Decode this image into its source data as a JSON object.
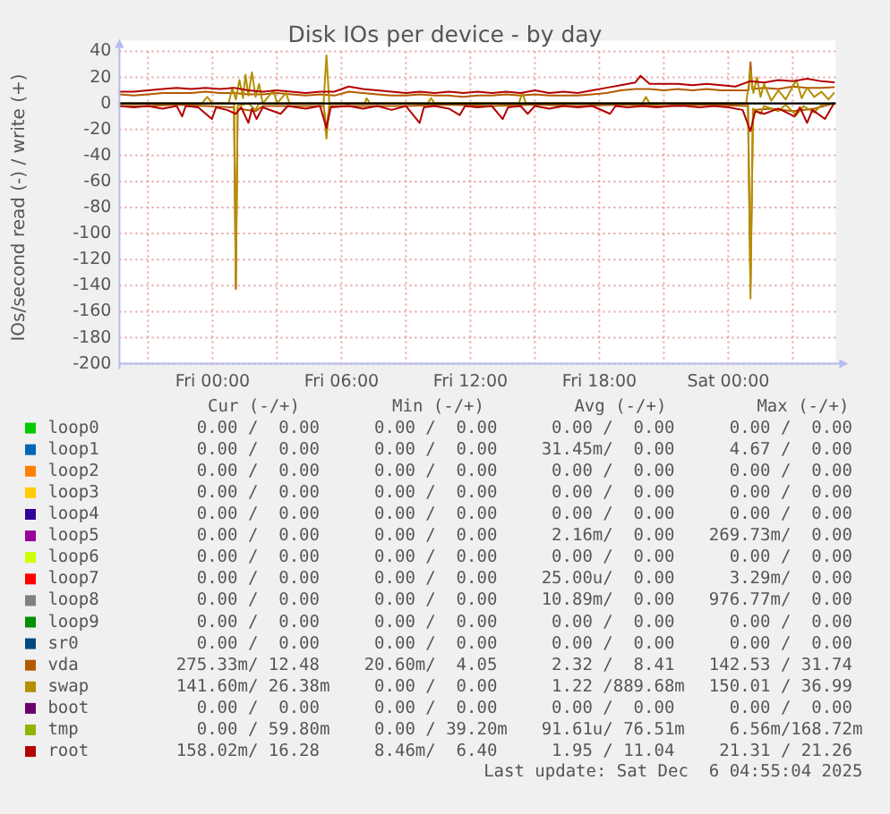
{
  "chart_data": {
    "type": "line",
    "title": "Disk IOs per device - by day",
    "ylabel": "IOs/second read (-) / write (+)",
    "xlim": [
      "2025-12-04T19:40",
      "2025-12-06T05:00"
    ],
    "xticks": [
      {
        "value": "2025-12-04T21:00",
        "label": null
      },
      {
        "value": "2025-12-05T00:00",
        "label": "Fri 00:00"
      },
      {
        "value": "2025-12-05T03:00",
        "label": null
      },
      {
        "value": "2025-12-05T06:00",
        "label": "Fri 06:00"
      },
      {
        "value": "2025-12-05T09:00",
        "label": null
      },
      {
        "value": "2025-12-05T12:00",
        "label": "Fri 12:00"
      },
      {
        "value": "2025-12-05T15:00",
        "label": null
      },
      {
        "value": "2025-12-05T18:00",
        "label": "Fri 18:00"
      },
      {
        "value": "2025-12-05T21:00",
        "label": null
      },
      {
        "value": "2025-12-06T00:00",
        "label": "Sat 00:00"
      },
      {
        "value": "2025-12-06T03:00",
        "label": null
      }
    ],
    "ylim": [
      -200,
      40
    ],
    "yticks": [
      -200,
      -180,
      -160,
      -140,
      -120,
      -100,
      -80,
      -60,
      -40,
      -20,
      0,
      20,
      40
    ],
    "grid": true,
    "legend": "bottom",
    "ref_lines": [
      {
        "axis": "y",
        "value": 0,
        "color": "#000000"
      }
    ],
    "series": [
      {
        "name": "loop0",
        "color": "#00cc00"
      },
      {
        "name": "loop1",
        "color": "#0066b3"
      },
      {
        "name": "loop2",
        "color": "#ff8000"
      },
      {
        "name": "loop3",
        "color": "#ffcc00"
      },
      {
        "name": "loop4",
        "color": "#330099"
      },
      {
        "name": "loop5",
        "color": "#990099"
      },
      {
        "name": "loop6",
        "color": "#ccff00"
      },
      {
        "name": "loop7",
        "color": "#ff0000"
      },
      {
        "name": "loop8",
        "color": "#808080"
      },
      {
        "name": "loop9",
        "color": "#008f00"
      },
      {
        "name": "sr0",
        "color": "#00487d"
      },
      {
        "name": "vda",
        "color": "#b35a00",
        "x": [
          "2025-12-04T19:40",
          "2025-12-04T20:20",
          "2025-12-04T21:00",
          "2025-12-04T21:40",
          "2025-12-04T22:20",
          "2025-12-04T23:00",
          "2025-12-04T23:40",
          "2025-12-05T00:20",
          "2025-12-05T01:00",
          "2025-12-05T01:40",
          "2025-12-05T02:20",
          "2025-12-05T03:00",
          "2025-12-05T03:40",
          "2025-12-05T04:20",
          "2025-12-05T05:00",
          "2025-12-05T05:40",
          "2025-12-05T06:20",
          "2025-12-05T07:00",
          "2025-12-05T07:40",
          "2025-12-05T08:20",
          "2025-12-05T09:00",
          "2025-12-05T09:40",
          "2025-12-05T10:20",
          "2025-12-05T11:00",
          "2025-12-05T11:40",
          "2025-12-05T12:20",
          "2025-12-05T13:00",
          "2025-12-05T13:40",
          "2025-12-05T14:20",
          "2025-12-05T15:00",
          "2025-12-05T15:40",
          "2025-12-05T16:20",
          "2025-12-05T17:00",
          "2025-12-05T17:40",
          "2025-12-05T18:20",
          "2025-12-05T19:00",
          "2025-12-05T19:40",
          "2025-12-05T20:20",
          "2025-12-05T21:00",
          "2025-12-05T21:40",
          "2025-12-05T22:20",
          "2025-12-05T23:00",
          "2025-12-05T23:40",
          "2025-12-06T00:20",
          "2025-12-06T00:57",
          "2025-12-06T01:02",
          "2025-12-06T01:07",
          "2025-12-06T01:40",
          "2025-12-06T02:20",
          "2025-12-06T03:00",
          "2025-12-06T03:40",
          "2025-12-06T04:20",
          "2025-12-06T04:55"
        ],
        "values": [
          7,
          6,
          7,
          8,
          8,
          8,
          9,
          8,
          8,
          7,
          7,
          8,
          7,
          6,
          7,
          6,
          9,
          8,
          7,
          6,
          6,
          7,
          6,
          6,
          5,
          6,
          6,
          7,
          6,
          7,
          6,
          6,
          6,
          7,
          8,
          10,
          11,
          11,
          10,
          11,
          10,
          11,
          10,
          10,
          10,
          31.74,
          11,
          12,
          11,
          13,
          12,
          12,
          12.48
        ]
      },
      {
        "color": "#b35a00",
        "x": [
          "2025-12-04T19:40",
          "2025-12-04T21:00",
          "2025-12-04T22:20",
          "2025-12-04T23:40",
          "2025-12-05T01:00",
          "2025-12-05T01:05",
          "2025-12-05T01:10",
          "2025-12-05T02:00",
          "2025-12-05T02:20",
          "2025-12-05T03:40",
          "2025-12-05T05:10",
          "2025-12-05T05:18",
          "2025-12-05T05:26",
          "2025-12-05T07:00",
          "2025-12-05T09:00",
          "2025-12-05T11:00",
          "2025-12-05T13:00",
          "2025-12-05T15:00",
          "2025-12-05T17:00",
          "2025-12-05T19:00",
          "2025-12-05T21:00",
          "2025-12-05T23:00",
          "2025-12-06T00:55",
          "2025-12-06T01:02",
          "2025-12-06T01:09",
          "2025-12-06T02:00",
          "2025-12-06T03:00",
          "2025-12-06T04:00",
          "2025-12-06T04:55"
        ],
        "values": [
          -2,
          -2,
          -1,
          -2,
          -3,
          -142.53,
          -4,
          -6,
          -2,
          -2,
          -2,
          -20,
          -2,
          -2,
          -2,
          -1,
          -2,
          -1,
          -2,
          -1,
          -2,
          -1,
          -2,
          -140,
          -5,
          -4,
          -6,
          -4,
          0
        ]
      },
      {
        "name": "swap",
        "color": "#b38f00",
        "x": [
          "2025-12-04T19:40",
          "2025-12-04T23:30",
          "2025-12-04T23:45",
          "2025-12-05T00:00",
          "2025-12-05T00:45",
          "2025-12-05T00:55",
          "2025-12-05T01:05",
          "2025-12-05T01:15",
          "2025-12-05T01:25",
          "2025-12-05T01:32",
          "2025-12-05T01:40",
          "2025-12-05T01:50",
          "2025-12-05T02:00",
          "2025-12-05T02:10",
          "2025-12-05T02:20",
          "2025-12-05T02:50",
          "2025-12-05T03:00",
          "2025-12-05T03:25",
          "2025-12-05T03:35",
          "2025-12-05T05:10",
          "2025-12-05T05:18",
          "2025-12-05T05:26",
          "2025-12-05T07:05",
          "2025-12-05T07:10",
          "2025-12-05T07:20",
          "2025-12-05T10:00",
          "2025-12-05T10:10",
          "2025-12-05T10:20",
          "2025-12-05T14:15",
          "2025-12-05T14:25",
          "2025-12-05T14:35",
          "2025-12-05T20:00",
          "2025-12-05T20:10",
          "2025-12-05T20:20",
          "2025-12-06T00:50",
          "2025-12-06T01:02",
          "2025-12-06T01:10",
          "2025-12-06T01:20",
          "2025-12-06T01:30",
          "2025-12-06T01:40",
          "2025-12-06T02:00",
          "2025-12-06T02:20",
          "2025-12-06T02:40",
          "2025-12-06T03:10",
          "2025-12-06T03:25",
          "2025-12-06T03:40",
          "2025-12-06T04:00",
          "2025-12-06T04:20",
          "2025-12-06T04:40",
          "2025-12-06T04:55"
        ],
        "values": [
          0,
          0,
          5,
          0,
          0,
          12,
          3,
          18,
          4,
          22,
          6,
          24,
          5,
          15,
          0,
          10,
          0,
          8,
          0,
          0,
          36.99,
          0,
          0,
          4,
          0,
          0,
          4,
          0,
          0,
          8,
          0,
          0,
          5,
          0,
          0,
          25,
          8,
          20,
          5,
          15,
          2,
          10,
          3,
          18,
          4,
          12,
          5,
          9,
          3,
          8
        ]
      },
      {
        "color": "#b38f00",
        "x": [
          "2025-12-04T19:40",
          "2025-12-05T01:00",
          "2025-12-05T01:05",
          "2025-12-05T01:10",
          "2025-12-05T01:40",
          "2025-12-05T02:00",
          "2025-12-05T02:10",
          "2025-12-05T05:10",
          "2025-12-05T05:18",
          "2025-12-05T05:26",
          "2025-12-06T00:55",
          "2025-12-06T01:02",
          "2025-12-06T01:09",
          "2025-12-06T01:30",
          "2025-12-06T01:40",
          "2025-12-06T02:20",
          "2025-12-06T02:40",
          "2025-12-06T03:10",
          "2025-12-06T03:30",
          "2025-12-06T04:00",
          "2025-12-06T04:20",
          "2025-12-06T04:55"
        ],
        "values": [
          0,
          0,
          -138,
          -2,
          0,
          -5,
          0,
          0,
          -27,
          0,
          0,
          -150.01,
          -4,
          -8,
          -2,
          -6,
          -1,
          -9,
          -2,
          -7,
          -1,
          0
        ]
      },
      {
        "name": "boot",
        "color": "#6b006b"
      },
      {
        "name": "tmp",
        "color": "#8fb300"
      },
      {
        "name": "root",
        "color": "#b30000",
        "x": [
          "2025-12-04T19:40",
          "2025-12-04T20:20",
          "2025-12-04T21:00",
          "2025-12-04T21:40",
          "2025-12-04T22:20",
          "2025-12-04T23:00",
          "2025-12-04T23:40",
          "2025-12-05T00:20",
          "2025-12-05T01:00",
          "2025-12-05T01:40",
          "2025-12-05T02:20",
          "2025-12-05T03:00",
          "2025-12-05T03:40",
          "2025-12-05T04:20",
          "2025-12-05T05:00",
          "2025-12-05T05:40",
          "2025-12-05T06:20",
          "2025-12-05T07:00",
          "2025-12-05T07:40",
          "2025-12-05T08:20",
          "2025-12-05T09:00",
          "2025-12-05T09:40",
          "2025-12-05T10:20",
          "2025-12-05T11:00",
          "2025-12-05T11:40",
          "2025-12-05T12:20",
          "2025-12-05T13:00",
          "2025-12-05T13:40",
          "2025-12-05T14:20",
          "2025-12-05T15:00",
          "2025-12-05T15:40",
          "2025-12-05T16:20",
          "2025-12-05T17:00",
          "2025-12-05T17:40",
          "2025-12-05T18:20",
          "2025-12-05T19:00",
          "2025-12-05T19:40",
          "2025-12-05T19:55",
          "2025-12-05T20:20",
          "2025-12-05T21:00",
          "2025-12-05T21:40",
          "2025-12-05T22:20",
          "2025-12-05T23:00",
          "2025-12-05T23:40",
          "2025-12-06T00:20",
          "2025-12-06T01:00",
          "2025-12-06T01:40",
          "2025-12-06T02:20",
          "2025-12-06T03:00",
          "2025-12-06T03:40",
          "2025-12-06T04:20",
          "2025-12-06T04:55"
        ],
        "values": [
          9,
          9,
          10,
          11,
          12,
          11,
          12,
          11,
          12,
          10,
          9,
          10,
          9,
          8,
          9,
          9,
          13,
          11,
          10,
          9,
          8,
          9,
          8,
          9,
          8,
          9,
          8,
          9,
          8,
          10,
          8,
          9,
          8,
          10,
          12,
          14,
          16,
          21.26,
          15,
          15,
          15,
          14,
          15,
          14,
          13,
          17,
          16,
          18,
          17,
          19,
          17,
          16.28
        ]
      },
      {
        "color": "#b30000",
        "x": [
          "2025-12-04T19:40",
          "2025-12-04T20:20",
          "2025-12-04T21:00",
          "2025-12-04T21:40",
          "2025-12-04T22:20",
          "2025-12-04T22:35",
          "2025-12-04T22:45",
          "2025-12-04T23:20",
          "2025-12-04T23:58",
          "2025-12-05T00:10",
          "2025-12-05T00:40",
          "2025-12-05T01:05",
          "2025-12-05T01:20",
          "2025-12-05T01:40",
          "2025-12-05T01:50",
          "2025-12-05T02:03",
          "2025-12-05T02:20",
          "2025-12-05T03:10",
          "2025-12-05T03:30",
          "2025-12-05T04:20",
          "2025-12-05T05:00",
          "2025-12-05T05:18",
          "2025-12-05T05:30",
          "2025-12-05T06:20",
          "2025-12-05T07:00",
          "2025-12-05T07:40",
          "2025-12-05T08:20",
          "2025-12-05T09:00",
          "2025-12-05T09:38",
          "2025-12-05T09:50",
          "2025-12-05T10:20",
          "2025-12-05T11:00",
          "2025-12-05T11:30",
          "2025-12-05T11:45",
          "2025-12-05T12:20",
          "2025-12-05T13:00",
          "2025-12-05T13:30",
          "2025-12-05T13:45",
          "2025-12-05T14:20",
          "2025-12-05T14:40",
          "2025-12-05T15:00",
          "2025-12-05T15:40",
          "2025-12-05T16:20",
          "2025-12-05T17:00",
          "2025-12-05T17:40",
          "2025-12-05T18:30",
          "2025-12-05T18:45",
          "2025-12-05T19:20",
          "2025-12-05T20:00",
          "2025-12-05T20:40",
          "2025-12-05T21:20",
          "2025-12-05T22:00",
          "2025-12-05T22:40",
          "2025-12-05T23:20",
          "2025-12-06T00:00",
          "2025-12-06T00:40",
          "2025-12-06T01:02",
          "2025-12-06T01:15",
          "2025-12-06T01:40",
          "2025-12-06T02:20",
          "2025-12-06T03:05",
          "2025-12-06T03:20",
          "2025-12-06T03:40",
          "2025-12-06T03:55",
          "2025-12-06T04:30",
          "2025-12-06T04:55"
        ],
        "values": [
          -2,
          -3,
          -2,
          -4,
          -2,
          -10,
          -2,
          -3,
          -12,
          -3,
          -5,
          -8,
          -3,
          -15,
          -4,
          -12,
          -3,
          -8,
          -2,
          -4,
          -2,
          -19,
          -3,
          -2,
          -4,
          -2,
          -5,
          -2,
          -15,
          -3,
          -2,
          -4,
          -9,
          -2,
          -3,
          -2,
          -12,
          -3,
          -2,
          -8,
          -2,
          -4,
          -2,
          -3,
          -2,
          -8,
          -2,
          -3,
          -2,
          -3,
          -2,
          -2,
          -3,
          -2,
          -3,
          -5,
          -21.31,
          -6,
          -8,
          -4,
          -10,
          -3,
          -15,
          -5,
          -12,
          0
        ]
      }
    ],
    "annotations": [
      "Cur (-/+)",
      "Min (-/+)",
      "Avg (-/+)",
      "Max (-/+)",
      "0.00 /  0.00",
      "0.00 /  0.00",
      "0.00 /  0.00",
      "0.00 /  0.00",
      "0.00 /  0.00",
      "0.00 /  0.00",
      "31.45m/  0.00",
      "4.67 /  0.00",
      "0.00 /  0.00",
      "0.00 /  0.00",
      "0.00 /  0.00",
      "0.00 /  0.00",
      "0.00 /  0.00",
      "0.00 /  0.00",
      "0.00 /  0.00",
      "0.00 /  0.00",
      "0.00 /  0.00",
      "0.00 /  0.00",
      "0.00 /  0.00",
      "0.00 /  0.00",
      "0.00 /  0.00",
      "0.00 /  0.00",
      "2.16m/  0.00",
      "269.73m/  0.00",
      "0.00 /  0.00",
      "0.00 /  0.00",
      "0.00 /  0.00",
      "0.00 /  0.00",
      "0.00 /  0.00",
      "0.00 /  0.00",
      "25.00u/  0.00",
      "3.29m/  0.00",
      "0.00 /  0.00",
      "0.00 /  0.00",
      "10.89m/  0.00",
      "976.77m/  0.00",
      "0.00 /  0.00",
      "0.00 /  0.00",
      "0.00 /  0.00",
      "0.00 /  0.00",
      "0.00 /  0.00",
      "0.00 /  0.00",
      "0.00 /  0.00",
      "0.00 /  0.00",
      "275.33m/ 12.48",
      "20.60m/  4.05",
      "2.32 /  8.41",
      "142.53 / 31.74",
      "141.60m/ 26.38m",
      "0.00 /  0.00",
      "1.22 /889.68m",
      "150.01 / 36.99",
      "0.00 /  0.00",
      "0.00 /  0.00",
      "0.00 /  0.00",
      "0.00 /  0.00",
      "0.00 / 59.80m",
      "0.00 / 39.20m",
      "91.61u/ 76.51m",
      "6.56m/168.72m",
      "158.02m/ 16.28",
      "8.46m/  6.40",
      "1.95 / 11.04",
      "21.31 / 21.26",
      "Last update: Sat Dec  6 04:55:04 2025"
    ]
  }
}
